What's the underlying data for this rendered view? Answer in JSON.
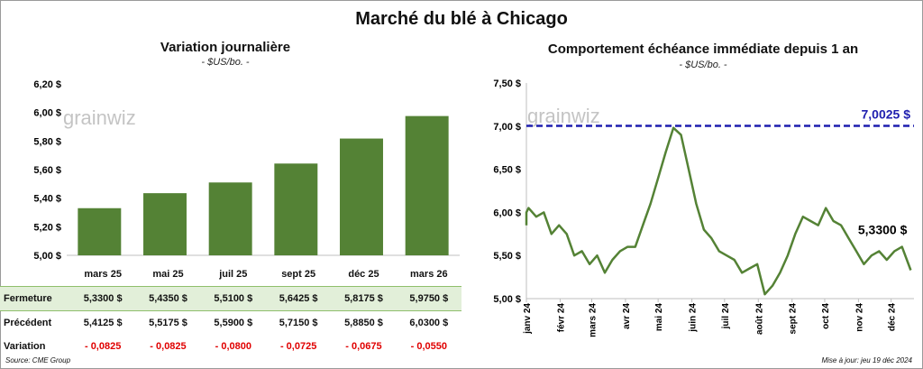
{
  "title": "Marché du blé à Chicago",
  "left_chart": {
    "title": "Variation journalière",
    "subtitle": "- $US/bo. -"
  },
  "right_chart": {
    "title": "Comportement échéance immédiate depuis 1 an",
    "subtitle": "- $US/bo. -"
  },
  "watermark": "grainwiz",
  "table": {
    "rows": [
      {
        "label": "Fermeture",
        "values": [
          "5,3300 $",
          "5,4350 $",
          "5,5100 $",
          "5,6425 $",
          "5,8175 $",
          "5,9750 $"
        ]
      },
      {
        "label": "Précédent",
        "values": [
          "5,4125 $",
          "5,5175 $",
          "5,5900 $",
          "5,7150 $",
          "5,8850 $",
          "6,0300 $"
        ]
      },
      {
        "label": "Variation",
        "values": [
          "- 0,0825",
          "- 0,0825",
          "- 0,0800",
          "- 0,0725",
          "- 0,0675",
          "- 0,0550"
        ]
      }
    ]
  },
  "footer": {
    "source": "Source: CME Group",
    "updated": "Mise à jour: jeu 19 déc 2024"
  },
  "colors": {
    "bar": "#548235",
    "line": "#548235",
    "reference": "#1f1faf",
    "negative": "#e00000",
    "highlight_row": "#e2efd9"
  },
  "chart_data": [
    {
      "type": "bar",
      "title": "Variation journalière",
      "subtitle": "- $US/bo. -",
      "categories": [
        "mars 25",
        "mai 25",
        "juil 25",
        "sept 25",
        "déc 25",
        "mars 26"
      ],
      "values": [
        5.33,
        5.435,
        5.51,
        5.6425,
        5.8175,
        5.975
      ],
      "ylim": [
        5.0,
        6.2
      ],
      "yticks": [
        "5,00 $",
        "5,20 $",
        "5,40 $",
        "5,60 $",
        "5,80 $",
        "6,00 $",
        "6,20 $"
      ],
      "grid": false
    },
    {
      "type": "line",
      "title": "Comportement échéance immédiate depuis 1 an",
      "subtitle": "- $US/bo. -",
      "xlabels": [
        "janv 24",
        "févr 24",
        "mars 24",
        "avr 24",
        "mai 24",
        "juin 24",
        "juil 24",
        "août 24",
        "sept 24",
        "oct 24",
        "nov 24",
        "déc 24"
      ],
      "ylim": [
        5.0,
        7.5
      ],
      "yticks": [
        "5,00 $",
        "5,50 $",
        "6,00 $",
        "6,50 $",
        "7,00 $",
        "7,50 $"
      ],
      "reference": {
        "value": 7.0025,
        "label": "7,0025 $"
      },
      "last_label": "5,3300 $",
      "grid": false,
      "x": [
        "2023-12-20",
        "2023-12-27",
        "2024-01-03",
        "2024-01-10",
        "2024-01-17",
        "2024-01-24",
        "2024-01-31",
        "2024-02-07",
        "2024-02-14",
        "2024-02-21",
        "2024-02-28",
        "2024-03-06",
        "2024-03-13",
        "2024-03-20",
        "2024-03-27",
        "2024-04-03",
        "2024-04-10",
        "2024-04-17",
        "2024-04-24",
        "2024-05-01",
        "2024-05-08",
        "2024-05-15",
        "2024-05-22",
        "2024-05-29",
        "2024-06-05",
        "2024-06-12",
        "2024-06-19",
        "2024-06-26",
        "2024-07-03",
        "2024-07-10",
        "2024-07-17",
        "2024-07-24",
        "2024-07-31",
        "2024-08-07",
        "2024-08-14",
        "2024-08-21",
        "2024-08-28",
        "2024-09-04",
        "2024-09-11",
        "2024-09-18",
        "2024-09-25",
        "2024-10-02",
        "2024-10-09",
        "2024-10-16",
        "2024-10-23",
        "2024-10-30",
        "2024-11-06",
        "2024-11-13",
        "2024-11-20",
        "2024-11-27",
        "2024-12-04",
        "2024-12-11",
        "2024-12-19"
      ],
      "values": [
        5.85,
        6.0,
        6.05,
        5.95,
        6.0,
        5.75,
        5.85,
        5.75,
        5.5,
        5.55,
        5.4,
        5.5,
        5.3,
        5.45,
        5.55,
        5.6,
        5.6,
        5.85,
        6.1,
        6.4,
        6.7,
        6.98,
        6.9,
        6.5,
        6.1,
        5.8,
        5.7,
        5.55,
        5.5,
        5.45,
        5.3,
        5.35,
        5.4,
        5.05,
        5.15,
        5.3,
        5.5,
        5.75,
        5.95,
        5.9,
        5.85,
        6.05,
        5.9,
        5.85,
        5.7,
        5.55,
        5.4,
        5.5,
        5.55,
        5.45,
        5.55,
        5.6,
        5.33
      ]
    }
  ]
}
